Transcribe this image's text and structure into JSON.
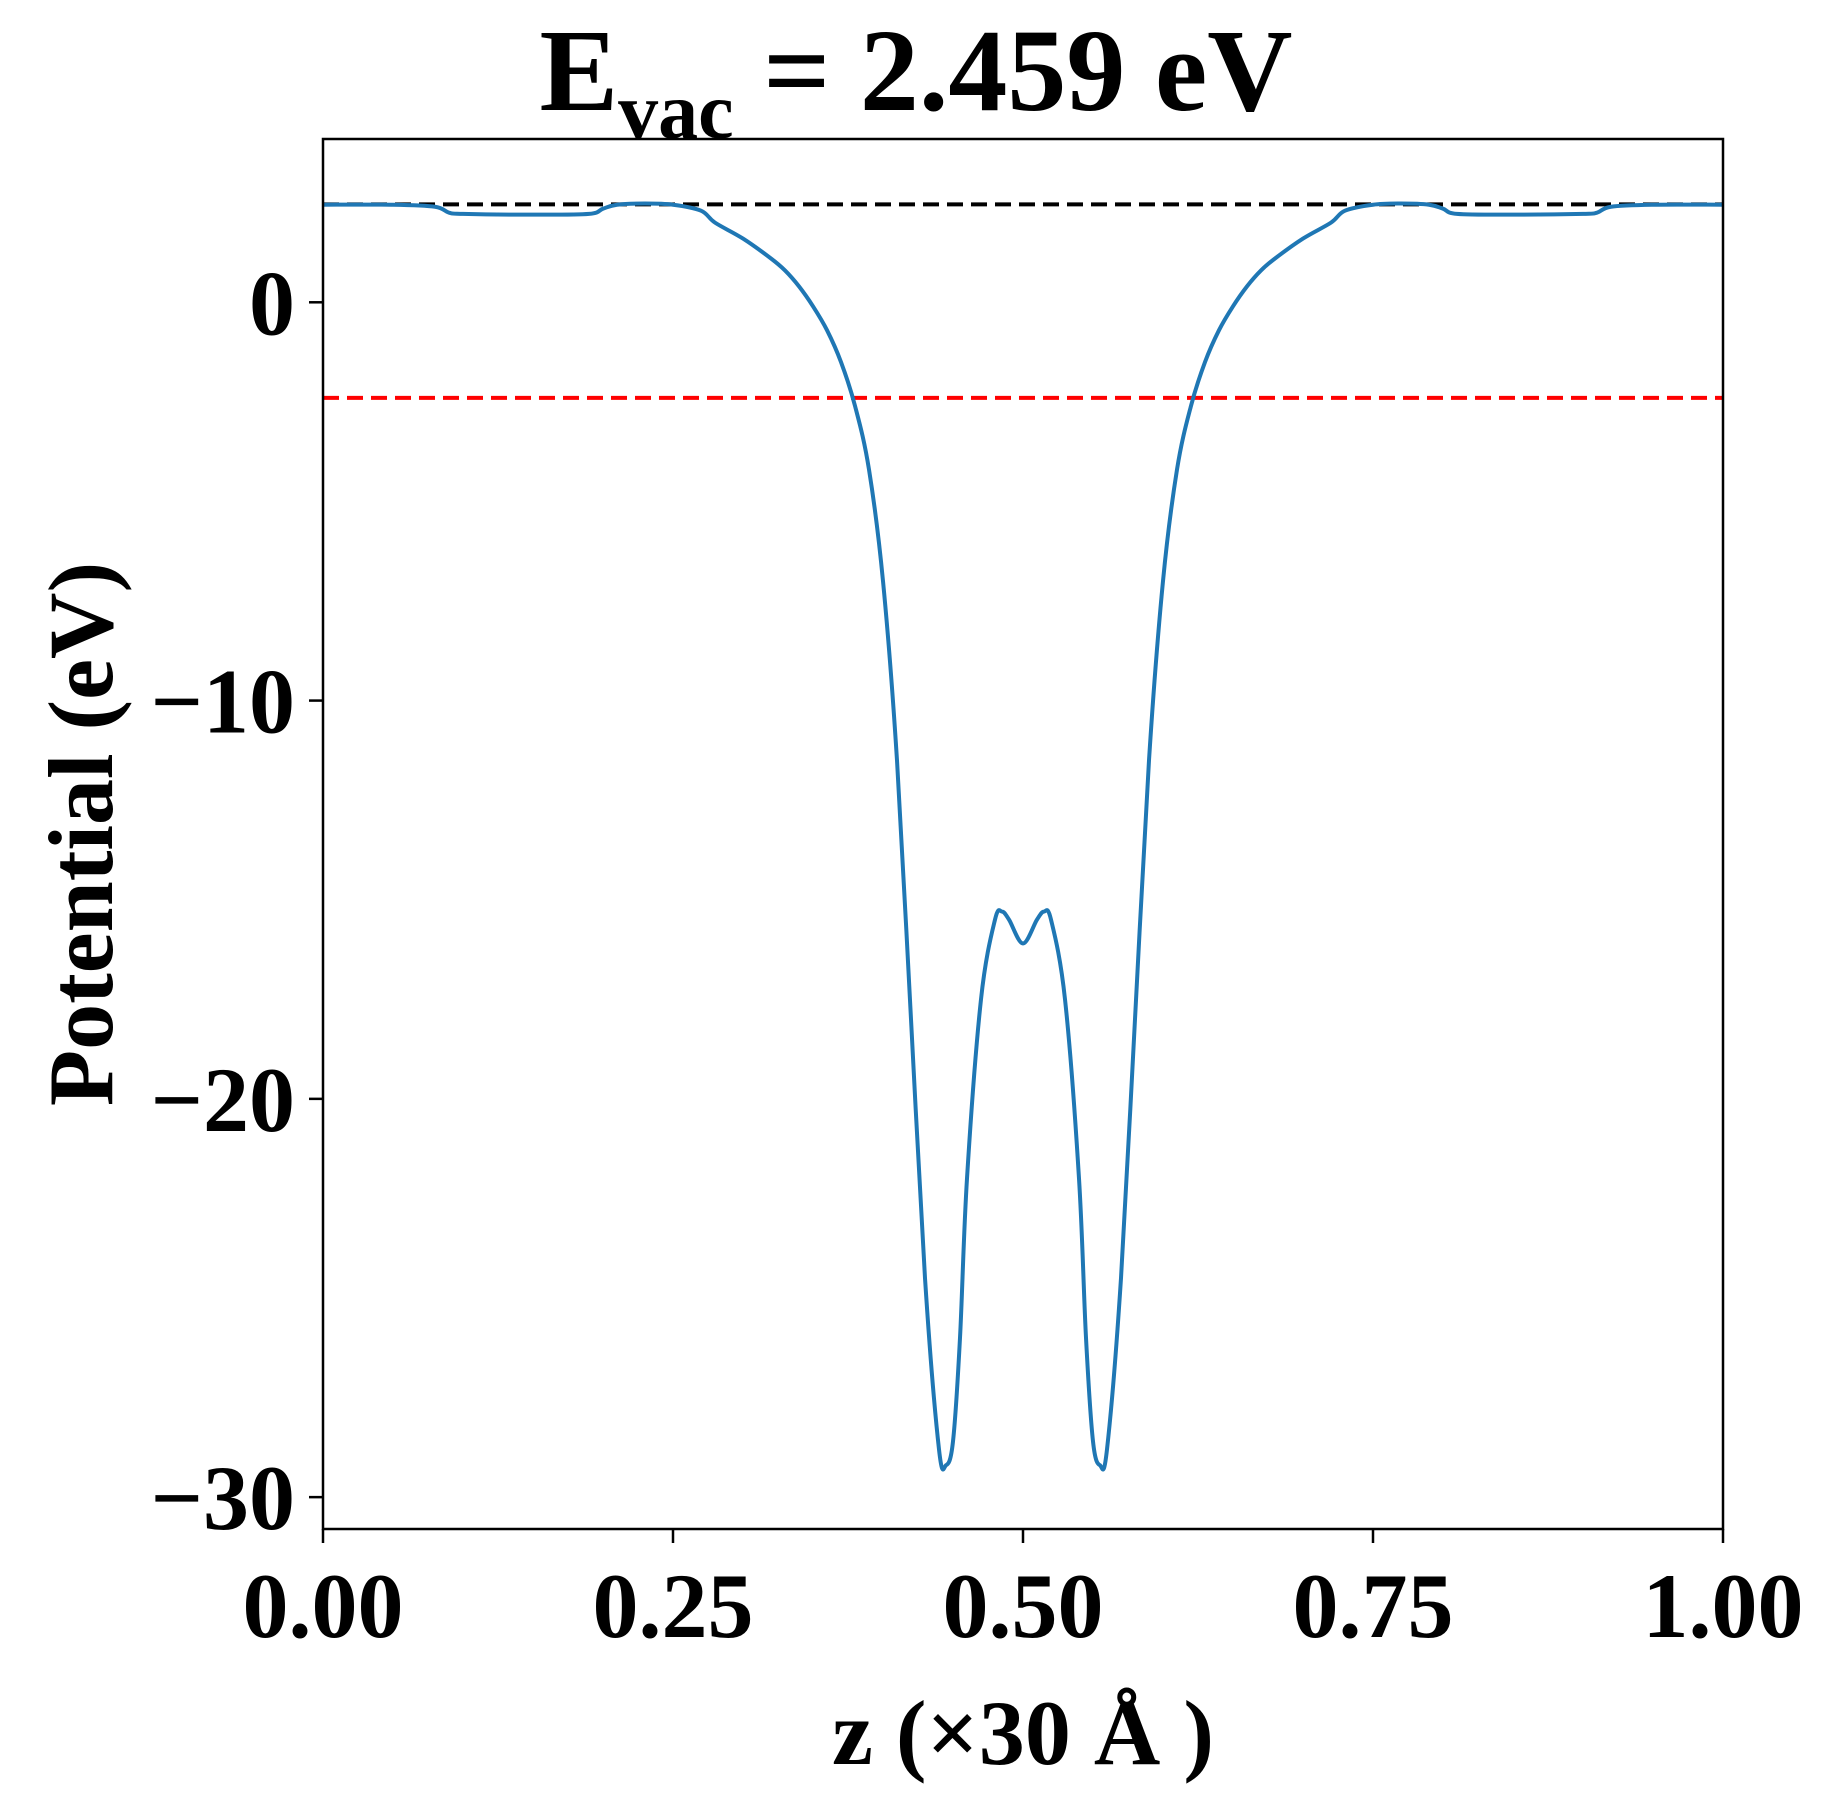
{
  "chart_data": {
    "type": "line",
    "title": {
      "main": "E",
      "subscript": "vac",
      "rest": " = 2.459 eV"
    },
    "xlabel": "z (×30 Å )",
    "ylabel": "Potential (eV)",
    "xlim": [
      0.0,
      1.0
    ],
    "ylim": [
      -30.8,
      4.1
    ],
    "xticks": [
      0.0,
      0.25,
      0.5,
      0.75,
      1.0
    ],
    "xtick_labels": [
      "0.00",
      "0.25",
      "0.50",
      "0.75",
      "1.00"
    ],
    "yticks": [
      0,
      -10,
      -20,
      -30
    ],
    "ytick_labels": [
      "0",
      "−10",
      "−20",
      "−30"
    ],
    "grid": false,
    "reference_lines": [
      {
        "y": 2.459,
        "color": "#000000",
        "style": "dashed"
      },
      {
        "y": -2.4,
        "color": "#ff0000",
        "style": "dashed"
      }
    ],
    "series": [
      {
        "color": "#1f77b4",
        "x": [
          0.0,
          0.05,
          0.08,
          0.09,
          0.1,
          0.15,
          0.19,
          0.2,
          0.21,
          0.23,
          0.25,
          0.27,
          0.28,
          0.3,
          0.32,
          0.33,
          0.34,
          0.35,
          0.36,
          0.37,
          0.38,
          0.39,
          0.4,
          0.41,
          0.42,
          0.43,
          0.44,
          0.445,
          0.45,
          0.455,
          0.46,
          0.47,
          0.48,
          0.485,
          0.49,
          0.5,
          0.51,
          0.515,
          0.52,
          0.53,
          0.54,
          0.545,
          0.55,
          0.555,
          0.56,
          0.57,
          0.58,
          0.59,
          0.6,
          0.61,
          0.62,
          0.63,
          0.64,
          0.65,
          0.66,
          0.67,
          0.68,
          0.7,
          0.72,
          0.73,
          0.75,
          0.77,
          0.79,
          0.8,
          0.81,
          0.85,
          0.9,
          0.91,
          0.92,
          0.95,
          1.0
        ],
        "y": [
          2.45,
          2.45,
          2.4,
          2.25,
          2.22,
          2.2,
          2.22,
          2.35,
          2.45,
          2.48,
          2.45,
          2.3,
          2.0,
          1.6,
          1.1,
          0.8,
          0.4,
          -0.1,
          -0.7,
          -1.5,
          -2.6,
          -4.2,
          -7.0,
          -11.5,
          -18.0,
          -24.5,
          -28.8,
          -29.2,
          -28.6,
          -26.0,
          -22.0,
          -17.5,
          -15.5,
          -15.3,
          -15.5,
          -16.1,
          -15.5,
          -15.3,
          -15.5,
          -17.5,
          -22.0,
          -26.0,
          -28.6,
          -29.2,
          -28.8,
          -24.5,
          -18.0,
          -11.5,
          -7.0,
          -4.2,
          -2.6,
          -1.5,
          -0.7,
          -0.1,
          0.4,
          0.8,
          1.1,
          1.6,
          2.0,
          2.3,
          2.45,
          2.48,
          2.45,
          2.35,
          2.22,
          2.2,
          2.22,
          2.25,
          2.4,
          2.45,
          2.45
        ]
      }
    ]
  }
}
